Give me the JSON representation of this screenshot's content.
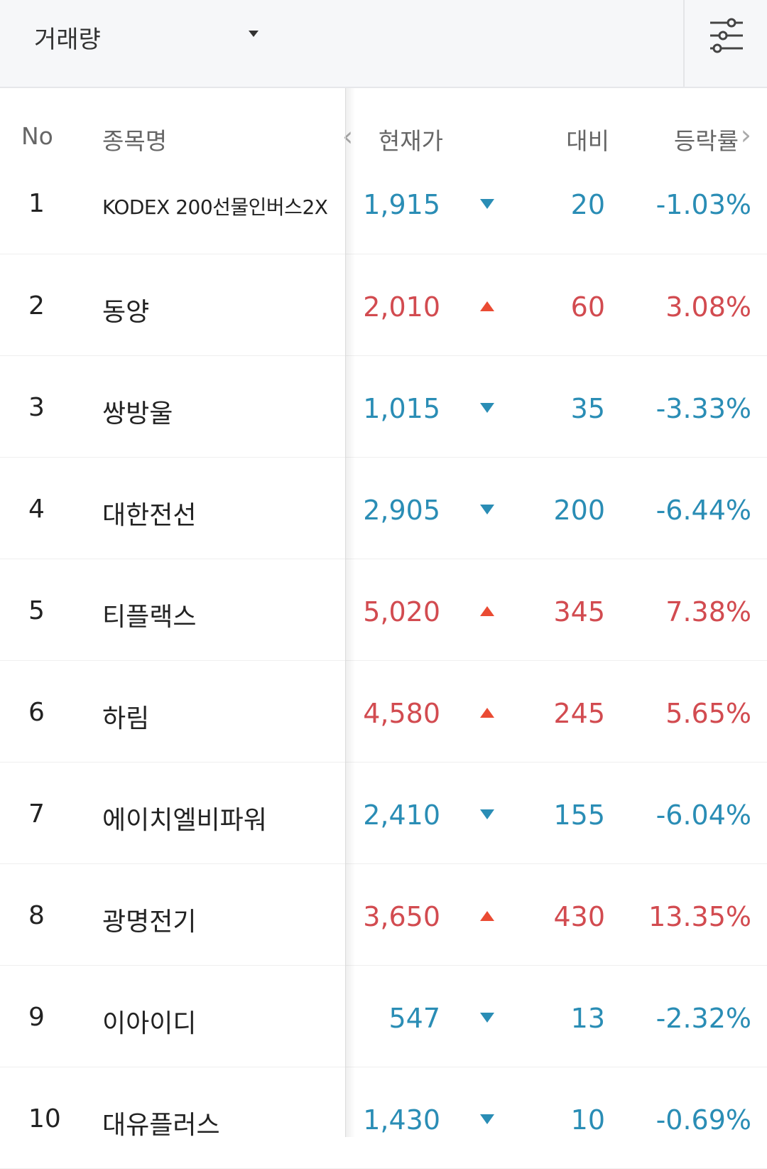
{
  "toolbar": {
    "sort_label": "거래량",
    "filter_icon": "sliders-icon"
  },
  "table": {
    "headers": {
      "no": "No",
      "name": "종목명",
      "price": "현재가",
      "diff": "대비",
      "rate": "등락률"
    },
    "scroll_left_icon": "chevron-left-icon",
    "scroll_right_icon": "chevron-right-icon",
    "colors": {
      "up": "#d24b50",
      "down": "#2a8db5",
      "up_arrow": "#ea4b33"
    },
    "rows": [
      {
        "no": "1",
        "name": "KODEX 200선물인버스2X",
        "price": "1,915",
        "direction": "down",
        "diff": "20",
        "rate": "-1.03%"
      },
      {
        "no": "2",
        "name": "동양",
        "price": "2,010",
        "direction": "up",
        "diff": "60",
        "rate": "3.08%"
      },
      {
        "no": "3",
        "name": "쌍방울",
        "price": "1,015",
        "direction": "down",
        "diff": "35",
        "rate": "-3.33%"
      },
      {
        "no": "4",
        "name": "대한전선",
        "price": "2,905",
        "direction": "down",
        "diff": "200",
        "rate": "-6.44%"
      },
      {
        "no": "5",
        "name": "티플랙스",
        "price": "5,020",
        "direction": "up",
        "diff": "345",
        "rate": "7.38%"
      },
      {
        "no": "6",
        "name": "하림",
        "price": "4,580",
        "direction": "up",
        "diff": "245",
        "rate": "5.65%"
      },
      {
        "no": "7",
        "name": "에이치엘비파워",
        "price": "2,410",
        "direction": "down",
        "diff": "155",
        "rate": "-6.04%"
      },
      {
        "no": "8",
        "name": "광명전기",
        "price": "3,650",
        "direction": "up",
        "diff": "430",
        "rate": "13.35%"
      },
      {
        "no": "9",
        "name": "이아이디",
        "price": "547",
        "direction": "down",
        "diff": "13",
        "rate": "-2.32%"
      },
      {
        "no": "10",
        "name": "대유플러스",
        "price": "1,430",
        "direction": "down",
        "diff": "10",
        "rate": "-0.69%"
      }
    ]
  }
}
